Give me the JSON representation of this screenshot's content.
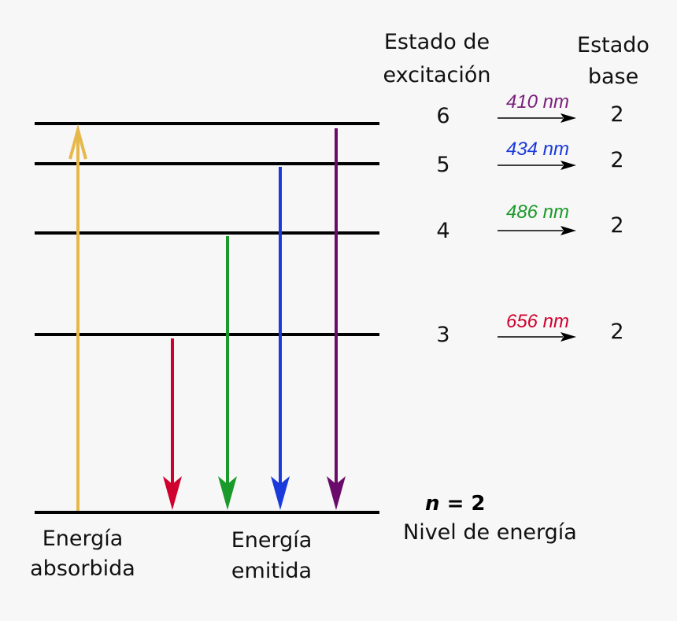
{
  "headers": {
    "excited": [
      "Estado de",
      "excitación"
    ],
    "ground": [
      "Estado",
      "base"
    ]
  },
  "transitions": [
    {
      "from": "6",
      "wavelength": "410 nm",
      "to": "2"
    },
    {
      "from": "5",
      "wavelength": "434 nm",
      "to": "2"
    },
    {
      "from": "4",
      "wavelength": "486 nm",
      "to": "2"
    },
    {
      "from": "3",
      "wavelength": "656 nm",
      "to": "2"
    }
  ],
  "ground_level": {
    "variable": "n",
    "value": "= 2",
    "caption": "Nivel de energía"
  },
  "arrows": {
    "absorbed": [
      "Energía",
      "absorbida"
    ],
    "emitted": [
      "Energía",
      "emitida"
    ]
  }
}
